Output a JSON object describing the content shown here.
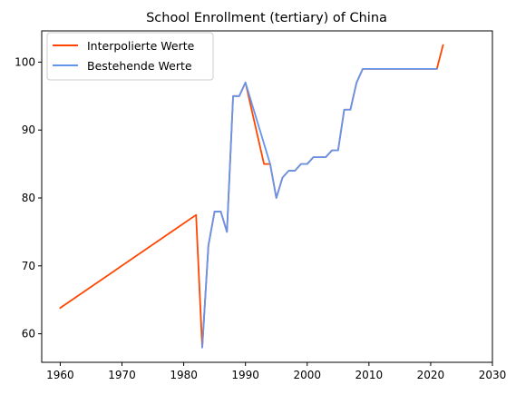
{
  "chart_data": {
    "type": "line",
    "title": "School Enrollment (tertiary) of China",
    "xlabel": "",
    "ylabel": "",
    "xlim": [
      1957,
      2030
    ],
    "ylim": [
      55.8,
      104.6
    ],
    "xticks": [
      1960,
      1970,
      1980,
      1990,
      2000,
      2010,
      2020,
      2030
    ],
    "yticks": [
      60,
      70,
      80,
      90,
      100
    ],
    "grid": false,
    "legend_position": "top-left",
    "series": [
      {
        "name": "Interpolierte Werte",
        "color": "#ff4500",
        "x": [
          1960,
          1982,
          1983,
          1984,
          1985,
          1986,
          1987,
          1988,
          1989,
          1990,
          1991,
          1992,
          1993,
          1994,
          1995,
          1996,
          1997,
          1998,
          1999,
          2000,
          2001,
          2002,
          2003,
          2004,
          2005,
          2006,
          2007,
          2008,
          2009,
          2010,
          2011,
          2012,
          2013,
          2014,
          2015,
          2016,
          2017,
          2018,
          2019,
          2020,
          2021,
          2022
        ],
        "y": [
          63.8,
          77.5,
          58.0,
          73.0,
          78.0,
          78.0,
          75.0,
          95.0,
          95.0,
          97.0,
          93.0,
          89.0,
          85.0,
          85.0,
          80.0,
          83.0,
          84.0,
          84.0,
          85.0,
          85.0,
          86.0,
          86.0,
          86.0,
          87.0,
          87.0,
          93.0,
          93.0,
          97.0,
          99.0,
          99.0,
          99.0,
          99.0,
          99.0,
          99.0,
          99.0,
          99.0,
          99.0,
          99.0,
          99.0,
          99.0,
          99.0,
          102.5
        ]
      },
      {
        "name": "Bestehende Werte",
        "color": "#6495ed",
        "x": [
          1983,
          1984,
          1985,
          1986,
          1987,
          1988,
          1989,
          1990,
          1994,
          1995,
          1996,
          1997,
          1998,
          1999,
          2000,
          2001,
          2002,
          2003,
          2004,
          2005,
          2006,
          2007,
          2008,
          2009,
          2021
        ],
        "y": [
          58.0,
          73.0,
          78.0,
          78.0,
          75.0,
          95.0,
          95.0,
          97.0,
          85.0,
          80.0,
          83.0,
          84.0,
          84.0,
          85.0,
          85.0,
          86.0,
          86.0,
          86.0,
          87.0,
          87.0,
          93.0,
          93.0,
          97.0,
          99.0,
          99.0
        ]
      }
    ]
  }
}
